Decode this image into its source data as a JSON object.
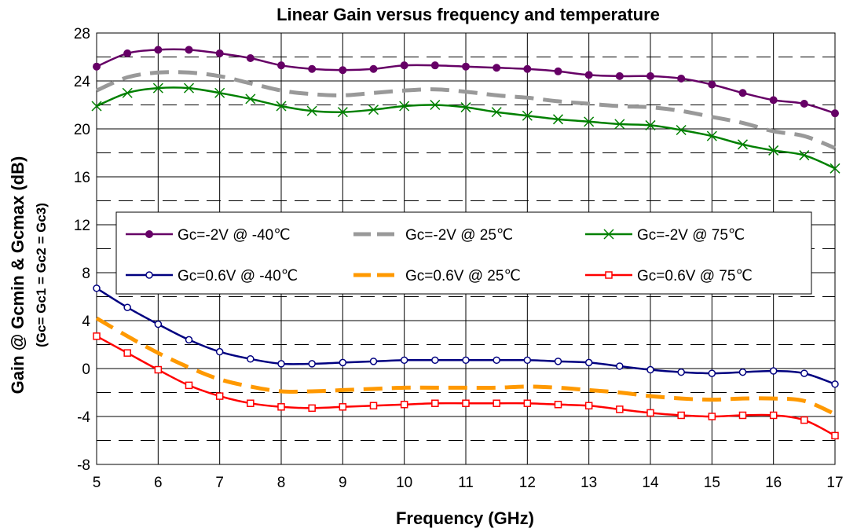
{
  "chart_data": {
    "type": "line",
    "title": "Linear Gain versus frequency and temperature",
    "xlabel": "Frequency (GHz)",
    "ylabel": "Gain @ Gcmin & Gcmax (dB)",
    "ylabel_sub": "(Gc= Gc1 = Gc2 = Gc3)",
    "xlim": [
      5,
      17
    ],
    "ylim": [
      -8,
      28
    ],
    "x_ticks": [
      "5",
      "6",
      "7",
      "8",
      "9",
      "10",
      "11",
      "12",
      "13",
      "14",
      "15",
      "16",
      "17"
    ],
    "y_ticks": [
      "-8",
      "-4",
      "0",
      "4",
      "8",
      "12",
      "16",
      "20",
      "24",
      "28"
    ],
    "grid": true,
    "legend_position": "center-left",
    "x": [
      5,
      5.5,
      6,
      6.5,
      7,
      7.5,
      8,
      8.5,
      9,
      9.5,
      10,
      10.5,
      11,
      11.5,
      12,
      12.5,
      13,
      13.5,
      14,
      14.5,
      15,
      15.5,
      16,
      16.5,
      17
    ],
    "series": [
      {
        "name": "Gc=-2V @ -40℃",
        "color": "#660066",
        "marker": "dot",
        "dash": "solid",
        "values": [
          25.2,
          26.3,
          26.6,
          26.6,
          26.3,
          25.9,
          25.3,
          25.0,
          24.9,
          25.0,
          25.3,
          25.3,
          25.2,
          25.1,
          25.0,
          24.8,
          24.5,
          24.4,
          24.4,
          24.2,
          23.7,
          23.0,
          22.4,
          22.1,
          21.3
        ]
      },
      {
        "name": "Gc=-2V @ 25℃",
        "color": "#999999",
        "marker": "none",
        "dash": "dashed",
        "values": [
          23.2,
          24.3,
          24.7,
          24.7,
          24.4,
          23.8,
          23.2,
          22.9,
          22.8,
          23.0,
          23.2,
          23.3,
          23.1,
          22.8,
          22.6,
          22.3,
          22.1,
          21.9,
          21.8,
          21.5,
          21.0,
          20.5,
          19.8,
          19.4,
          18.4
        ]
      },
      {
        "name": "Gc=-2V @ 75℃",
        "color": "#008000",
        "marker": "x",
        "dash": "solid",
        "values": [
          21.9,
          23.0,
          23.4,
          23.4,
          23.0,
          22.5,
          21.9,
          21.5,
          21.4,
          21.6,
          21.9,
          22.0,
          21.8,
          21.4,
          21.1,
          20.8,
          20.6,
          20.4,
          20.3,
          19.9,
          19.4,
          18.7,
          18.2,
          17.8,
          16.7
        ]
      },
      {
        "name": "Gc=0.6V @ -40℃",
        "color": "#000080",
        "marker": "circle",
        "dash": "solid",
        "values": [
          6.7,
          5.1,
          3.7,
          2.4,
          1.4,
          0.8,
          0.4,
          0.4,
          0.5,
          0.6,
          0.7,
          0.7,
          0.7,
          0.7,
          0.7,
          0.6,
          0.5,
          0.2,
          -0.1,
          -0.3,
          -0.4,
          -0.3,
          -0.2,
          -0.4,
          -1.3
        ]
      },
      {
        "name": "Gc=0.6V @ 25℃",
        "color": "#FF9900",
        "marker": "none",
        "dash": "dashed",
        "values": [
          4.2,
          2.7,
          1.3,
          0.1,
          -0.9,
          -1.5,
          -1.9,
          -1.9,
          -1.8,
          -1.7,
          -1.6,
          -1.6,
          -1.6,
          -1.6,
          -1.5,
          -1.6,
          -1.8,
          -2.0,
          -2.3,
          -2.5,
          -2.6,
          -2.5,
          -2.5,
          -2.7,
          -3.8
        ]
      },
      {
        "name": "Gc=0.6V @ 75℃",
        "color": "#FF0000",
        "marker": "square",
        "dash": "solid",
        "values": [
          2.7,
          1.3,
          -0.1,
          -1.4,
          -2.3,
          -2.9,
          -3.2,
          -3.3,
          -3.2,
          -3.1,
          -3.0,
          -2.9,
          -2.9,
          -2.9,
          -2.9,
          -3.0,
          -3.1,
          -3.4,
          -3.7,
          -3.9,
          -4.0,
          -3.9,
          -3.9,
          -4.3,
          -5.6
        ]
      }
    ]
  }
}
